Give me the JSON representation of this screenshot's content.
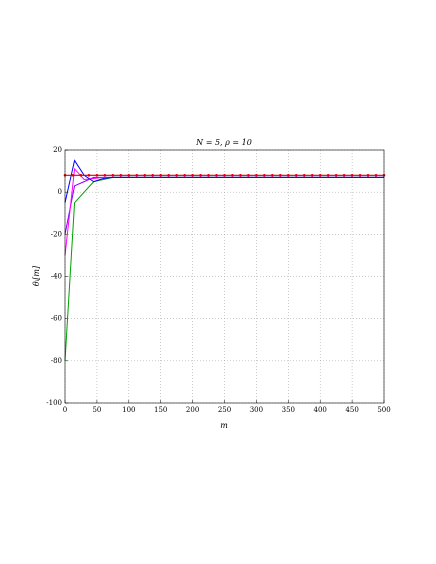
{
  "chart_data": {
    "type": "line",
    "title": "N = 5, ρ = 10",
    "xlabel": "m",
    "ylabel": "θᵢ[m]",
    "xlim": [
      0,
      500
    ],
    "xticks": [
      0,
      50,
      100,
      150,
      200,
      250,
      300,
      350,
      400,
      450,
      500
    ],
    "ylim": [
      -100,
      20
    ],
    "yticks": [
      -100,
      -80,
      -60,
      -40,
      -20,
      0,
      20
    ],
    "grid": true,
    "series": [
      {
        "color": "#00a000",
        "x": [
          0,
          15,
          30,
          45,
          60,
          75,
          100,
          150,
          200,
          300,
          400,
          500
        ],
        "values": [
          -80,
          -5,
          0,
          5,
          6,
          7,
          7,
          7,
          7,
          7,
          7,
          7
        ],
        "markers": false
      },
      {
        "color": "#8000ff",
        "x": [
          0,
          15,
          30,
          45,
          60,
          75,
          100,
          150,
          200,
          300,
          400,
          500
        ],
        "values": [
          -20,
          3,
          5,
          7,
          7,
          7,
          7,
          7,
          7,
          7,
          7,
          7
        ],
        "markers": false
      },
      {
        "color": "#ff00ff",
        "x": [
          0,
          15,
          30,
          45,
          60,
          75,
          100,
          150,
          200,
          300,
          400,
          500
        ],
        "values": [
          -30,
          11,
          6,
          6.5,
          7,
          7,
          7,
          7,
          7,
          7,
          7,
          7
        ],
        "markers": false
      },
      {
        "color": "#0000ff",
        "x": [
          0,
          15,
          30,
          45,
          60,
          75,
          100,
          150,
          200,
          300,
          400,
          500
        ],
        "values": [
          -5,
          15,
          8,
          5,
          6.5,
          7,
          7,
          7,
          7,
          7,
          7,
          7
        ],
        "markers": false
      },
      {
        "color": "#e00000",
        "x": [
          0,
          12.5,
          25,
          37.5,
          50,
          62.5,
          75,
          87.5,
          100,
          112.5,
          125,
          137.5,
          150,
          162.5,
          175,
          187.5,
          200,
          212.5,
          225,
          237.5,
          250,
          262.5,
          275,
          287.5,
          300,
          312.5,
          325,
          337.5,
          350,
          362.5,
          375,
          387.5,
          400,
          412.5,
          425,
          437.5,
          450,
          462.5,
          475,
          487.5,
          500
        ],
        "values": [
          8,
          8,
          8,
          8,
          8,
          8,
          8,
          8,
          8,
          8,
          8,
          8,
          8,
          8,
          8,
          8,
          8,
          8,
          8,
          8,
          8,
          8,
          8,
          8,
          8,
          8,
          8,
          8,
          8,
          8,
          8,
          8,
          8,
          8,
          8,
          8,
          8,
          8,
          8,
          8,
          8
        ],
        "markers": true
      }
    ]
  }
}
